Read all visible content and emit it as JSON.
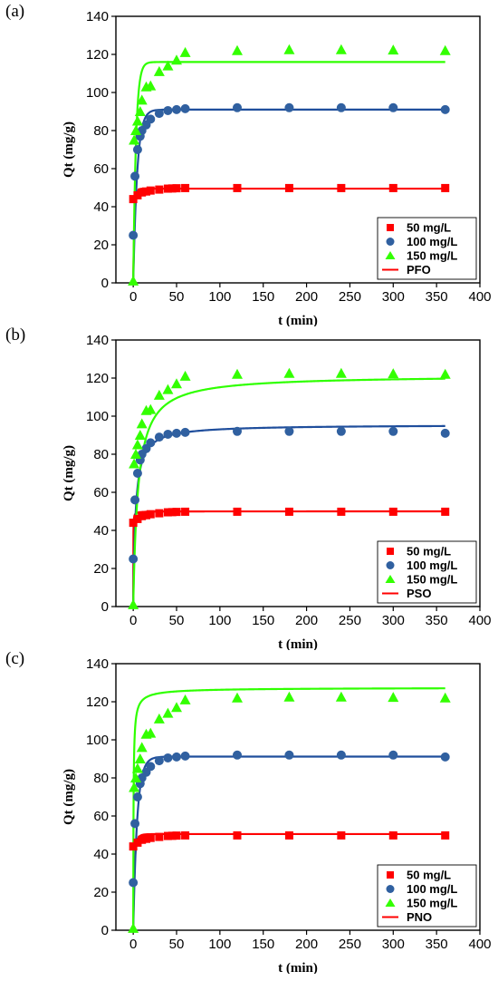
{
  "colors": {
    "s50": "#ff0000",
    "s100": "#3060a0",
    "s150": "#33ff00",
    "fit_red": "#ff0000",
    "fit_blue": "#1f4e9c",
    "fit_green": "#2fff00"
  },
  "chart_data": [
    {
      "type": "scatter",
      "panel_label": "(a)",
      "xlabel": "t (min)",
      "ylabel": "Qt (mg/g)",
      "xlim": [
        -20,
        400
      ],
      "ylim": [
        0,
        140
      ],
      "xticks": [
        0,
        50,
        100,
        150,
        200,
        250,
        300,
        350,
        400
      ],
      "yticks": [
        0,
        20,
        40,
        60,
        80,
        100,
        120,
        140
      ],
      "legend_position": "bottom-right",
      "fit_label": "PFO",
      "series": [
        {
          "name": "50 mg/L",
          "marker": "square",
          "x": [
            0,
            5,
            10,
            15,
            20,
            30,
            40,
            45,
            50,
            60,
            120,
            180,
            240,
            300,
            360
          ],
          "y": [
            44,
            46,
            47.5,
            48,
            48.5,
            49,
            49.5,
            49.6,
            49.7,
            49.8,
            49.8,
            49.8,
            49.8,
            49.8,
            49.8
          ]
        },
        {
          "name": "100 mg/L",
          "marker": "circle",
          "x": [
            0,
            2,
            5,
            8,
            10,
            15,
            20,
            30,
            40,
            50,
            60,
            120,
            180,
            240,
            300,
            360
          ],
          "y": [
            25,
            56,
            70,
            77,
            80,
            83,
            86,
            89,
            90.5,
            91,
            91.5,
            92,
            92,
            92,
            92,
            91
          ]
        },
        {
          "name": "150 mg/L",
          "marker": "triangle",
          "x": [
            0,
            1,
            3,
            5,
            8,
            10,
            15,
            20,
            30,
            40,
            50,
            60,
            120,
            180,
            240,
            300,
            360
          ],
          "y": [
            1,
            75,
            80,
            85,
            90,
            96,
            103,
            103.5,
            111,
            114,
            117,
            121,
            122,
            122.5,
            122.5,
            122.3,
            122
          ]
        }
      ],
      "fit": {
        "model": "PFO",
        "curves": [
          {
            "qe": 49.5,
            "k": 0.7
          },
          {
            "qe": 91,
            "k": 0.22
          },
          {
            "qe": 116,
            "k": 0.32
          }
        ]
      }
    },
    {
      "type": "scatter",
      "panel_label": "(b)",
      "xlabel": "t (min)",
      "ylabel": "Qt (mg/g)",
      "xlim": [
        -20,
        400
      ],
      "ylim": [
        0,
        140
      ],
      "xticks": [
        0,
        50,
        100,
        150,
        200,
        250,
        300,
        350,
        400
      ],
      "yticks": [
        0,
        20,
        40,
        60,
        80,
        100,
        120,
        140
      ],
      "legend_position": "bottom-right",
      "fit_label": "PSO",
      "series": [
        {
          "name": "50 mg/L",
          "marker": "square",
          "x": [
            0,
            5,
            10,
            15,
            20,
            30,
            40,
            45,
            50,
            60,
            120,
            180,
            240,
            300,
            360
          ],
          "y": [
            44,
            46,
            47.5,
            48,
            48.5,
            49,
            49.5,
            49.6,
            49.7,
            49.8,
            49.8,
            49.8,
            49.8,
            49.8,
            49.8
          ]
        },
        {
          "name": "100 mg/L",
          "marker": "circle",
          "x": [
            0,
            2,
            5,
            8,
            10,
            15,
            20,
            30,
            40,
            50,
            60,
            120,
            180,
            240,
            300,
            360
          ],
          "y": [
            25,
            56,
            70,
            77,
            80,
            83,
            86,
            89,
            90.5,
            91,
            91.5,
            92,
            92,
            92,
            92,
            91
          ]
        },
        {
          "name": "150 mg/L",
          "marker": "triangle",
          "x": [
            0,
            1,
            3,
            5,
            8,
            10,
            15,
            20,
            30,
            40,
            50,
            60,
            120,
            180,
            240,
            300,
            360
          ],
          "y": [
            1,
            75,
            80,
            85,
            90,
            96,
            103,
            103.5,
            111,
            114,
            117,
            121,
            122,
            122.5,
            122.5,
            122.3,
            122
          ]
        }
      ],
      "fit": {
        "model": "PSO",
        "curves": [
          {
            "qe": 50,
            "k": 0.3
          },
          {
            "qe": 95.5,
            "k": 0.004
          },
          {
            "qe": 121.5,
            "k": 0.0015
          }
        ]
      }
    },
    {
      "type": "scatter",
      "panel_label": "(c)",
      "xlabel": "t (min)",
      "ylabel": "Qt (mg/g)",
      "xlim": [
        -20,
        400
      ],
      "ylim": [
        0,
        140
      ],
      "xticks": [
        0,
        50,
        100,
        150,
        200,
        250,
        300,
        350,
        400
      ],
      "yticks": [
        0,
        20,
        40,
        60,
        80,
        100,
        120,
        140
      ],
      "legend_position": "bottom-right",
      "fit_label": "PNO",
      "series": [
        {
          "name": "50 mg/L",
          "marker": "square",
          "x": [
            0,
            5,
            10,
            15,
            20,
            30,
            40,
            45,
            50,
            60,
            120,
            180,
            240,
            300,
            360
          ],
          "y": [
            44,
            46,
            47.5,
            48,
            48.5,
            49,
            49.5,
            49.6,
            49.7,
            49.8,
            49.8,
            49.8,
            49.8,
            49.8,
            49.8
          ]
        },
        {
          "name": "100 mg/L",
          "marker": "circle",
          "x": [
            0,
            2,
            5,
            8,
            10,
            15,
            20,
            30,
            40,
            50,
            60,
            120,
            180,
            240,
            300,
            360
          ],
          "y": [
            25,
            56,
            70,
            77,
            80,
            83,
            86,
            89,
            90.5,
            91,
            91.5,
            92,
            92,
            92,
            92,
            91
          ]
        },
        {
          "name": "150 mg/L",
          "marker": "triangle",
          "x": [
            0,
            1,
            3,
            5,
            8,
            10,
            15,
            20,
            30,
            40,
            50,
            60,
            120,
            180,
            240,
            300,
            360
          ],
          "y": [
            1,
            75,
            80,
            85,
            90,
            96,
            103,
            103.5,
            111,
            114,
            117,
            121,
            122,
            122.5,
            122.5,
            122.3,
            122
          ]
        }
      ],
      "fit": {
        "model": "PNO",
        "curves": [
          {
            "qe": 50.5,
            "k": 0.35,
            "n": 1.2
          },
          {
            "qe": 91.2,
            "k": 0.18,
            "n": 1.05
          },
          {
            "qe": 127.5,
            "k": 0.006,
            "n": 2.3
          }
        ]
      }
    }
  ]
}
